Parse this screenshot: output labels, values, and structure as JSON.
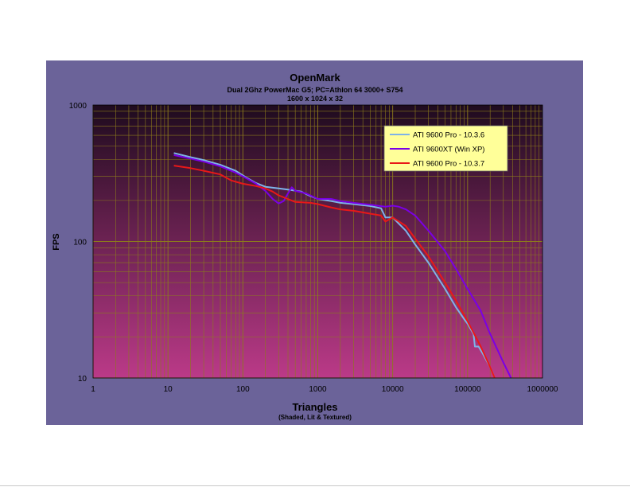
{
  "chart_data": {
    "type": "line",
    "title": "OpenMark",
    "subtitle_lines": [
      "Dual 2Ghz PowerMac G5; PC=Athlon 64 3000+ S754",
      "1600 x 1024 x 32"
    ],
    "xlabel": "Triangles",
    "xlabel_sub": "(Shaded, Lit & Textured)",
    "ylabel": "FPS",
    "x_scale": "log",
    "y_scale": "log",
    "xlim": [
      1,
      1000000
    ],
    "ylim": [
      10,
      1000
    ],
    "x_ticks": [
      1,
      10,
      100,
      1000,
      10000,
      100000,
      1000000
    ],
    "x_tick_labels": [
      "1",
      "10",
      "100",
      "1000",
      "10000",
      "100000",
      "1000000"
    ],
    "y_ticks": [
      10,
      100,
      1000
    ],
    "y_tick_labels": [
      "10",
      "100",
      "1000"
    ],
    "grid": true,
    "legend_placement": "top-right",
    "colors": {
      "figure_bg": "#6b6399",
      "plot_top": "#1e0b1e",
      "plot_bottom": "#bb3a88",
      "grid": "#8c7a1c",
      "legend_bg": "#ffff99"
    },
    "series": [
      {
        "name": "ATI 9600 Pro - 10.3.6",
        "color": "#7eb3e8",
        "points": [
          [
            12,
            445
          ],
          [
            20,
            415
          ],
          [
            30,
            395
          ],
          [
            50,
            365
          ],
          [
            80,
            330
          ],
          [
            110,
            295
          ],
          [
            150,
            268
          ],
          [
            200,
            252
          ],
          [
            300,
            245
          ],
          [
            400,
            240
          ],
          [
            600,
            232
          ],
          [
            800,
            215
          ],
          [
            1000,
            205
          ],
          [
            1500,
            198
          ],
          [
            2000,
            192
          ],
          [
            3000,
            188
          ],
          [
            5000,
            182
          ],
          [
            7000,
            175
          ],
          [
            8000,
            150
          ],
          [
            10000,
            150
          ],
          [
            15000,
            120
          ],
          [
            20000,
            95
          ],
          [
            30000,
            70
          ],
          [
            50000,
            45
          ],
          [
            70000,
            33
          ],
          [
            90000,
            27
          ],
          [
            100000,
            25
          ],
          [
            120000,
            21
          ],
          [
            125000,
            17
          ],
          [
            140000,
            17
          ],
          [
            160000,
            15
          ],
          [
            200000,
            12
          ],
          [
            230000,
            10
          ]
        ]
      },
      {
        "name": "ATI 9600XT (Win XP)",
        "color": "#7a00e6",
        "points": [
          [
            12,
            430
          ],
          [
            20,
            405
          ],
          [
            30,
            385
          ],
          [
            50,
            355
          ],
          [
            80,
            320
          ],
          [
            110,
            292
          ],
          [
            150,
            265
          ],
          [
            200,
            235
          ],
          [
            250,
            205
          ],
          [
            300,
            190
          ],
          [
            350,
            198
          ],
          [
            400,
            225
          ],
          [
            450,
            250
          ],
          [
            500,
            235
          ],
          [
            700,
            225
          ],
          [
            1000,
            205
          ],
          [
            1500,
            205
          ],
          [
            2000,
            198
          ],
          [
            3000,
            192
          ],
          [
            5000,
            186
          ],
          [
            8000,
            180
          ],
          [
            10000,
            183
          ],
          [
            12000,
            180
          ],
          [
            15000,
            172
          ],
          [
            20000,
            155
          ],
          [
            30000,
            120
          ],
          [
            50000,
            85
          ],
          [
            70000,
            63
          ],
          [
            100000,
            45
          ],
          [
            150000,
            31
          ],
          [
            200000,
            21
          ],
          [
            300000,
            13
          ],
          [
            380000,
            10
          ]
        ]
      },
      {
        "name": "ATI 9600 Pro - 10.3.7",
        "color": "#e81818",
        "points": [
          [
            12,
            360
          ],
          [
            20,
            345
          ],
          [
            30,
            330
          ],
          [
            50,
            310
          ],
          [
            70,
            280
          ],
          [
            100,
            265
          ],
          [
            150,
            255
          ],
          [
            200,
            245
          ],
          [
            250,
            232
          ],
          [
            300,
            218
          ],
          [
            500,
            195
          ],
          [
            800,
            192
          ],
          [
            1000,
            188
          ],
          [
            1500,
            178
          ],
          [
            2000,
            172
          ],
          [
            3000,
            168
          ],
          [
            5000,
            160
          ],
          [
            7000,
            155
          ],
          [
            8000,
            140
          ],
          [
            10000,
            150
          ],
          [
            15000,
            130
          ],
          [
            20000,
            105
          ],
          [
            30000,
            78
          ],
          [
            50000,
            50
          ],
          [
            70000,
            37
          ],
          [
            100000,
            26
          ],
          [
            150000,
            17
          ],
          [
            200000,
            12
          ],
          [
            230000,
            10
          ]
        ]
      }
    ]
  }
}
